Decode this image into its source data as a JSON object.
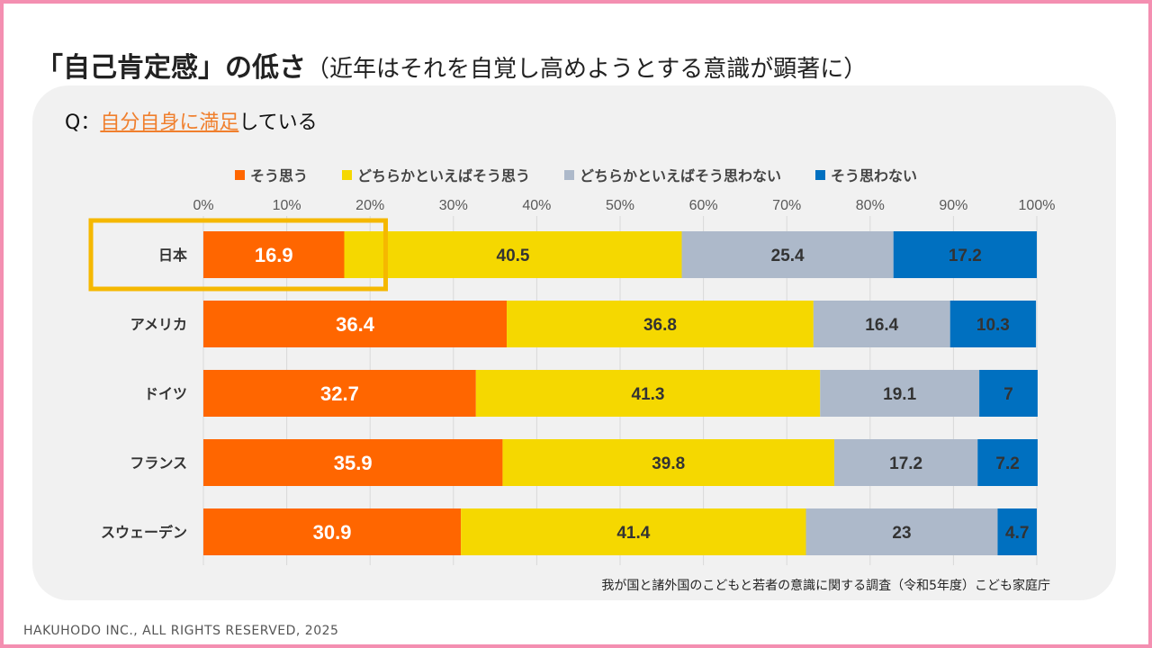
{
  "header": {
    "title_main": "「自己肯定感」の低さ",
    "title_sub": "（近年はそれを自覚し高めようとする意識が顕著に）"
  },
  "question": {
    "prefix": "Q：",
    "highlight": "自分自身に満足",
    "suffix": "している"
  },
  "source": "我が国と諸外国のこどもと若者の意識に関する調査（令和5年度）こども家庭庁",
  "copyright": "HAKUHODO INC., ALL RIGHTS RESERVED, 2025",
  "highlight_color": "#F5B800",
  "chart_data": {
    "type": "bar",
    "orientation": "horizontal",
    "stacked": true,
    "categories": [
      "日本",
      "アメリカ",
      "ドイツ",
      "フランス",
      "スウェーデン"
    ],
    "series": [
      {
        "name": "そう思う",
        "color": "#FF6600",
        "label_color": "#ffffff",
        "values": [
          16.9,
          36.4,
          32.7,
          35.9,
          30.9
        ]
      },
      {
        "name": "どちらかといえばそう思う",
        "color": "#F5D800",
        "label_color": "#333333",
        "values": [
          40.5,
          36.8,
          41.3,
          39.8,
          41.4
        ]
      },
      {
        "name": "どちらかといえばそう思わない",
        "color": "#ADB9CA",
        "label_color": "#333333",
        "values": [
          25.4,
          16.4,
          19.1,
          17.2,
          23
        ]
      },
      {
        "name": "そう思わない",
        "color": "#0070C0",
        "label_color": "#333333",
        "values": [
          17.2,
          10.3,
          7,
          7.2,
          4.7
        ]
      }
    ],
    "xlim": [
      0,
      100
    ],
    "xticks": [
      "0%",
      "10%",
      "20%",
      "30%",
      "40%",
      "50%",
      "60%",
      "70%",
      "80%",
      "90%",
      "100%"
    ],
    "grid": true,
    "legend_position": "top",
    "highlighted_category": "日本",
    "highlighted_series": "そう思う"
  }
}
